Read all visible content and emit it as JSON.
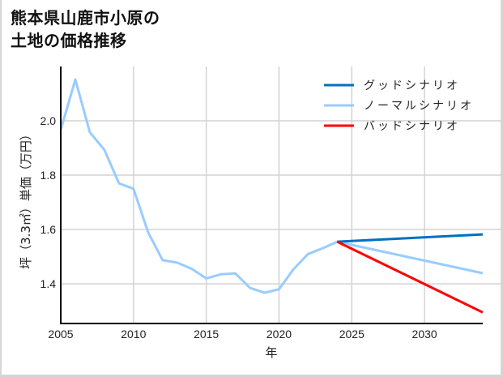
{
  "title": {
    "line1": "熊本県山鹿市小原の",
    "line2": "土地の価格推移"
  },
  "chart_data": {
    "type": "line",
    "title": "熊本県山鹿市小原の土地の価格推移",
    "xlabel": "年",
    "ylabel": "坪（3.3㎡）単価（万円）",
    "xlim": [
      2005,
      2034
    ],
    "ylim": [
      1.254,
      2.2
    ],
    "grid": true,
    "legend_position": "upper right",
    "x_ticks": [
      2005,
      2010,
      2015,
      2020,
      2025,
      2030
    ],
    "y_ticks": [
      1.4,
      1.6,
      1.8,
      2.0
    ],
    "y_tick_labels": [
      "1.4",
      "1.6",
      "1.8",
      "2.0"
    ],
    "series": [
      {
        "name": "ノーマルシナリオ",
        "role": "history",
        "color": "#99ccff",
        "x": [
          2005,
          2006,
          2007,
          2008,
          2009,
          2010,
          2011,
          2012,
          2013,
          2014,
          2015,
          2016,
          2017,
          2018,
          2019,
          2020,
          2021,
          2022,
          2023,
          2024
        ],
        "values": [
          1.967,
          2.152,
          1.958,
          1.893,
          1.77,
          1.75,
          1.59,
          1.487,
          1.478,
          1.455,
          1.42,
          1.435,
          1.438,
          1.385,
          1.367,
          1.38,
          1.454,
          1.51,
          1.531,
          1.555
        ]
      },
      {
        "name": "グッドシナリオ",
        "color": "#0070c0",
        "x": [
          2024,
          2034
        ],
        "values": [
          1.555,
          1.582
        ]
      },
      {
        "name": "ノーマルシナリオ",
        "color": "#99ccff",
        "x": [
          2024,
          2034
        ],
        "values": [
          1.555,
          1.439
        ]
      },
      {
        "name": "バッドシナリオ",
        "color": "#ff0000",
        "x": [
          2024,
          2034
        ],
        "values": [
          1.555,
          1.295
        ]
      }
    ]
  },
  "legend": [
    {
      "label": "グッドシナリオ",
      "color": "#0070c0"
    },
    {
      "label": "ノーマルシナリオ",
      "color": "#99ccff"
    },
    {
      "label": "バッドシナリオ",
      "color": "#ff0000"
    }
  ],
  "axes": {
    "xlabel": "年",
    "ylabel": "坪（3.3㎡）単価（万円）"
  }
}
